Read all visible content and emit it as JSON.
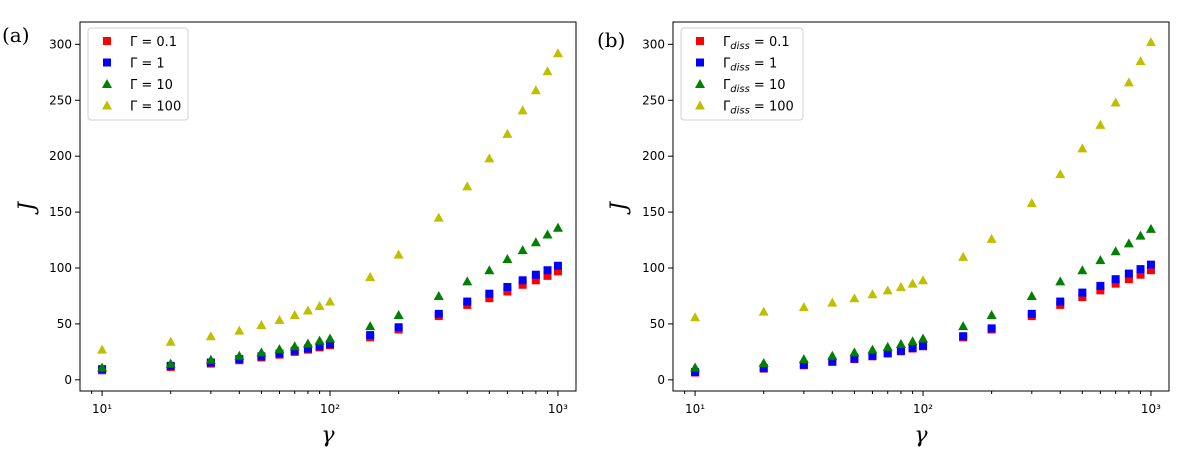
{
  "chart_data": [
    {
      "type": "scatter",
      "panel_label": "(a)",
      "xlabel": "γ",
      "ylabel": "J",
      "xscale": "log",
      "xlim": [
        8,
        1200
      ],
      "ylim": [
        -10,
        320
      ],
      "yticks": [
        0,
        50,
        100,
        150,
        200,
        250,
        300
      ],
      "xticks": [
        {
          "value": 10,
          "label": "10¹"
        },
        {
          "value": 100,
          "label": "10²"
        },
        {
          "value": 1000,
          "label": "10³"
        }
      ],
      "legend_position": "top-left",
      "grid": false,
      "x": [
        10,
        20,
        30,
        40,
        50,
        60,
        70,
        80,
        90,
        100,
        150,
        200,
        300,
        400,
        500,
        600,
        700,
        800,
        900,
        1000
      ],
      "series": [
        {
          "name": "Γ = 0.1",
          "marker": "square",
          "color": "#ff0000",
          "values": [
            8.5,
            11.5,
            14.5,
            17.5,
            20,
            22.5,
            25,
            27,
            29,
            31,
            38,
            45,
            57,
            67,
            73,
            79,
            85,
            89,
            93,
            97
          ]
        },
        {
          "name": "Γ = 1",
          "marker": "square",
          "color": "#0000ff",
          "values": [
            9.5,
            12.5,
            15.5,
            18.5,
            21,
            23.5,
            26,
            28,
            30,
            32,
            40,
            47,
            59,
            70,
            77,
            83,
            89,
            94,
            98,
            102
          ]
        },
        {
          "name": "Γ = 10",
          "marker": "triangle",
          "color": "#008000",
          "values": [
            11,
            14.5,
            18,
            21.5,
            24.5,
            27.5,
            30,
            32.5,
            35,
            37,
            48,
            58,
            75,
            88,
            98,
            108,
            116,
            123,
            130,
            136
          ]
        },
        {
          "name": "Γ = 100",
          "marker": "triangle",
          "color": "#bfbf00",
          "values": [
            27,
            34,
            39,
            44,
            49,
            53.5,
            58,
            62,
            66,
            70,
            92,
            112,
            145,
            173,
            198,
            220,
            241,
            259,
            276,
            292
          ]
        }
      ]
    },
    {
      "type": "scatter",
      "panel_label": "(b)",
      "xlabel": "γ",
      "ylabel": "J",
      "xscale": "log",
      "xlim": [
        8,
        1200
      ],
      "ylim": [
        -10,
        320
      ],
      "yticks": [
        0,
        50,
        100,
        150,
        200,
        250,
        300
      ],
      "xticks": [
        {
          "value": 10,
          "label": "10¹"
        },
        {
          "value": 100,
          "label": "10²"
        },
        {
          "value": 1000,
          "label": "10³"
        }
      ],
      "legend_position": "top-left",
      "grid": false,
      "x": [
        10,
        20,
        30,
        40,
        50,
        60,
        70,
        80,
        90,
        100,
        150,
        200,
        300,
        400,
        500,
        600,
        700,
        800,
        900,
        1000
      ],
      "series": [
        {
          "name": "Γ_diss = 0.1",
          "name_main": "Γ",
          "name_sub": "diss",
          "name_rest": " = 0.1",
          "marker": "square",
          "color": "#ff0000",
          "values": [
            6.5,
            10,
            13,
            16,
            18.5,
            21,
            23.5,
            25.5,
            28,
            30,
            38,
            45,
            57,
            67,
            74,
            80,
            86,
            90,
            94,
            98
          ]
        },
        {
          "name": "Γ_diss = 1",
          "name_main": "Γ",
          "name_sub": "diss",
          "name_rest": " = 1",
          "marker": "square",
          "color": "#0000ff",
          "values": [
            7,
            10.5,
            13.5,
            16.5,
            19,
            21.5,
            24,
            26,
            28.5,
            30.5,
            39,
            46,
            59,
            70,
            78,
            84,
            90,
            95,
            99,
            103
          ]
        },
        {
          "name": "Γ_diss = 10",
          "name_main": "Γ",
          "name_sub": "diss",
          "name_rest": " = 10",
          "marker": "triangle",
          "color": "#008000",
          "values": [
            11,
            15,
            18.5,
            21.5,
            24.5,
            27,
            29.5,
            32,
            34.5,
            37,
            48,
            58,
            75,
            88,
            98,
            107,
            115,
            122,
            129,
            135
          ]
        },
        {
          "name": "Γ_diss = 100",
          "name_main": "Γ",
          "name_sub": "diss",
          "name_rest": " = 100",
          "marker": "triangle",
          "color": "#bfbf00",
          "values": [
            56,
            61,
            65,
            69,
            73,
            76.5,
            80,
            83,
            86,
            89,
            110,
            126,
            158,
            184,
            207,
            228,
            248,
            266,
            285,
            302
          ]
        }
      ]
    }
  ]
}
